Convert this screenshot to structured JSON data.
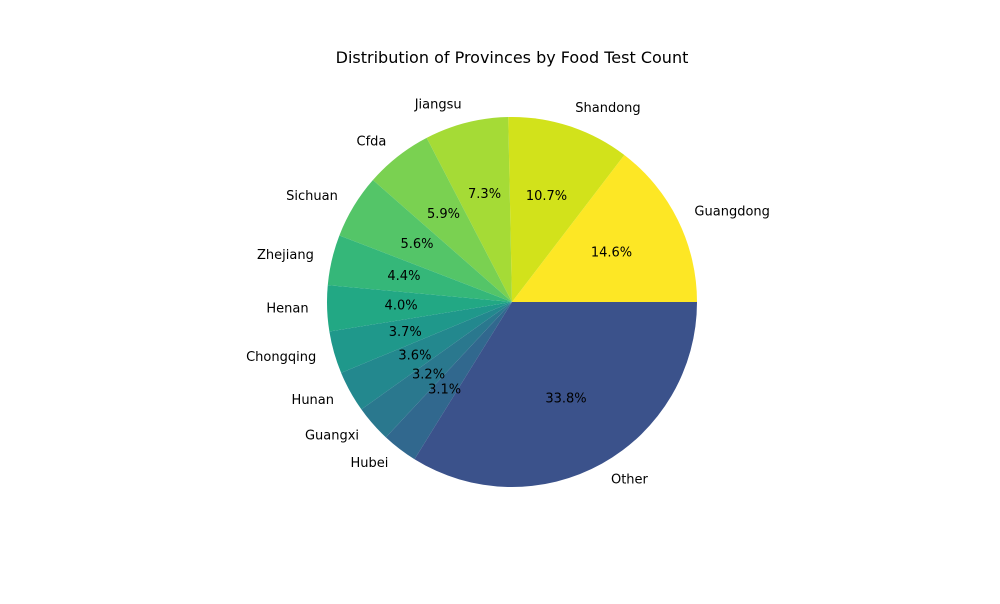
{
  "chart_data": {
    "type": "pie",
    "title": "Distribution of Provinces by Food Test Count",
    "start_angle_deg": 0,
    "direction": "counterclockwise",
    "value_format": "percent_1dp",
    "slices": [
      {
        "label": "Guangdong",
        "value": 14.6,
        "color": "#fde725"
      },
      {
        "label": "Shandong",
        "value": 10.7,
        "color": "#d2e21b"
      },
      {
        "label": "Jiangsu",
        "value": 7.3,
        "color": "#a5db36"
      },
      {
        "label": "Cfda",
        "value": 5.9,
        "color": "#7ad151"
      },
      {
        "label": "Sichuan",
        "value": 5.6,
        "color": "#54c568"
      },
      {
        "label": "Zhejiang",
        "value": 4.4,
        "color": "#35b779"
      },
      {
        "label": "Henan",
        "value": 4.0,
        "color": "#22a884"
      },
      {
        "label": "Chongqing",
        "value": 3.7,
        "color": "#1f988b"
      },
      {
        "label": "Hunan",
        "value": 3.6,
        "color": "#23888e"
      },
      {
        "label": "Guangxi",
        "value": 3.2,
        "color": "#2a788e"
      },
      {
        "label": "Hubei",
        "value": 3.1,
        "color": "#31688e"
      },
      {
        "label": "Other",
        "value": 33.8,
        "color": "#3b528b"
      }
    ]
  }
}
